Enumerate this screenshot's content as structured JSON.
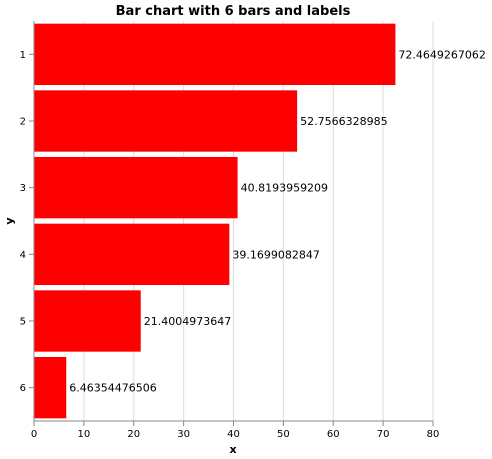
{
  "chart_data": {
    "type": "bar",
    "orientation": "horizontal",
    "title": "Bar chart with 6 bars and labels",
    "xlabel": "x",
    "ylabel": "y",
    "categories": [
      "1",
      "2",
      "3",
      "4",
      "5",
      "6"
    ],
    "values": [
      72.4649267062,
      52.7566328985,
      40.8193959209,
      39.1699082847,
      21.4004973647,
      6.46354476506
    ],
    "data_labels": [
      "72.4649267062",
      "52.7566328985",
      "40.8193959209",
      "39.1699082847",
      "21.4004973647",
      "6.46354476506"
    ],
    "xlim": [
      0,
      80
    ],
    "x_ticks": [
      "0",
      "10",
      "20",
      "30",
      "40",
      "50",
      "60",
      "70",
      "80"
    ],
    "grid": true,
    "bar_color": "#ff0000"
  }
}
